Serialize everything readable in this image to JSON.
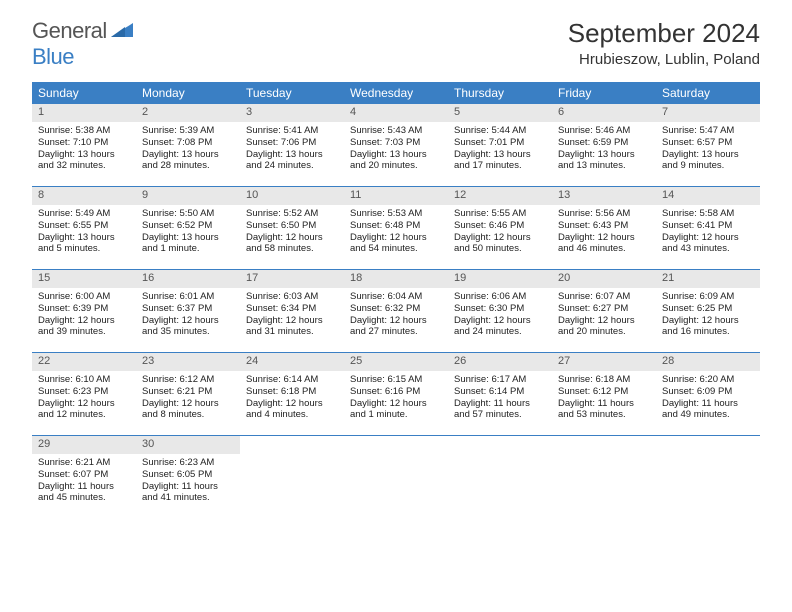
{
  "logo": {
    "text1": "General",
    "text2": "Blue"
  },
  "title": "September 2024",
  "location": "Hrubieszow, Lublin, Poland",
  "colors": {
    "accent": "#3a7fc4",
    "daynum_bg": "#e8e8e8",
    "text": "#222222",
    "logo_gray": "#555555"
  },
  "dow": [
    "Sunday",
    "Monday",
    "Tuesday",
    "Wednesday",
    "Thursday",
    "Friday",
    "Saturday"
  ],
  "days": [
    {
      "n": "1",
      "sr": "Sunrise: 5:38 AM",
      "ss": "Sunset: 7:10 PM",
      "dl": "Daylight: 13 hours and 32 minutes."
    },
    {
      "n": "2",
      "sr": "Sunrise: 5:39 AM",
      "ss": "Sunset: 7:08 PM",
      "dl": "Daylight: 13 hours and 28 minutes."
    },
    {
      "n": "3",
      "sr": "Sunrise: 5:41 AM",
      "ss": "Sunset: 7:06 PM",
      "dl": "Daylight: 13 hours and 24 minutes."
    },
    {
      "n": "4",
      "sr": "Sunrise: 5:43 AM",
      "ss": "Sunset: 7:03 PM",
      "dl": "Daylight: 13 hours and 20 minutes."
    },
    {
      "n": "5",
      "sr": "Sunrise: 5:44 AM",
      "ss": "Sunset: 7:01 PM",
      "dl": "Daylight: 13 hours and 17 minutes."
    },
    {
      "n": "6",
      "sr": "Sunrise: 5:46 AM",
      "ss": "Sunset: 6:59 PM",
      "dl": "Daylight: 13 hours and 13 minutes."
    },
    {
      "n": "7",
      "sr": "Sunrise: 5:47 AM",
      "ss": "Sunset: 6:57 PM",
      "dl": "Daylight: 13 hours and 9 minutes."
    },
    {
      "n": "8",
      "sr": "Sunrise: 5:49 AM",
      "ss": "Sunset: 6:55 PM",
      "dl": "Daylight: 13 hours and 5 minutes."
    },
    {
      "n": "9",
      "sr": "Sunrise: 5:50 AM",
      "ss": "Sunset: 6:52 PM",
      "dl": "Daylight: 13 hours and 1 minute."
    },
    {
      "n": "10",
      "sr": "Sunrise: 5:52 AM",
      "ss": "Sunset: 6:50 PM",
      "dl": "Daylight: 12 hours and 58 minutes."
    },
    {
      "n": "11",
      "sr": "Sunrise: 5:53 AM",
      "ss": "Sunset: 6:48 PM",
      "dl": "Daylight: 12 hours and 54 minutes."
    },
    {
      "n": "12",
      "sr": "Sunrise: 5:55 AM",
      "ss": "Sunset: 6:46 PM",
      "dl": "Daylight: 12 hours and 50 minutes."
    },
    {
      "n": "13",
      "sr": "Sunrise: 5:56 AM",
      "ss": "Sunset: 6:43 PM",
      "dl": "Daylight: 12 hours and 46 minutes."
    },
    {
      "n": "14",
      "sr": "Sunrise: 5:58 AM",
      "ss": "Sunset: 6:41 PM",
      "dl": "Daylight: 12 hours and 43 minutes."
    },
    {
      "n": "15",
      "sr": "Sunrise: 6:00 AM",
      "ss": "Sunset: 6:39 PM",
      "dl": "Daylight: 12 hours and 39 minutes."
    },
    {
      "n": "16",
      "sr": "Sunrise: 6:01 AM",
      "ss": "Sunset: 6:37 PM",
      "dl": "Daylight: 12 hours and 35 minutes."
    },
    {
      "n": "17",
      "sr": "Sunrise: 6:03 AM",
      "ss": "Sunset: 6:34 PM",
      "dl": "Daylight: 12 hours and 31 minutes."
    },
    {
      "n": "18",
      "sr": "Sunrise: 6:04 AM",
      "ss": "Sunset: 6:32 PM",
      "dl": "Daylight: 12 hours and 27 minutes."
    },
    {
      "n": "19",
      "sr": "Sunrise: 6:06 AM",
      "ss": "Sunset: 6:30 PM",
      "dl": "Daylight: 12 hours and 24 minutes."
    },
    {
      "n": "20",
      "sr": "Sunrise: 6:07 AM",
      "ss": "Sunset: 6:27 PM",
      "dl": "Daylight: 12 hours and 20 minutes."
    },
    {
      "n": "21",
      "sr": "Sunrise: 6:09 AM",
      "ss": "Sunset: 6:25 PM",
      "dl": "Daylight: 12 hours and 16 minutes."
    },
    {
      "n": "22",
      "sr": "Sunrise: 6:10 AM",
      "ss": "Sunset: 6:23 PM",
      "dl": "Daylight: 12 hours and 12 minutes."
    },
    {
      "n": "23",
      "sr": "Sunrise: 6:12 AM",
      "ss": "Sunset: 6:21 PM",
      "dl": "Daylight: 12 hours and 8 minutes."
    },
    {
      "n": "24",
      "sr": "Sunrise: 6:14 AM",
      "ss": "Sunset: 6:18 PM",
      "dl": "Daylight: 12 hours and 4 minutes."
    },
    {
      "n": "25",
      "sr": "Sunrise: 6:15 AM",
      "ss": "Sunset: 6:16 PM",
      "dl": "Daylight: 12 hours and 1 minute."
    },
    {
      "n": "26",
      "sr": "Sunrise: 6:17 AM",
      "ss": "Sunset: 6:14 PM",
      "dl": "Daylight: 11 hours and 57 minutes."
    },
    {
      "n": "27",
      "sr": "Sunrise: 6:18 AM",
      "ss": "Sunset: 6:12 PM",
      "dl": "Daylight: 11 hours and 53 minutes."
    },
    {
      "n": "28",
      "sr": "Sunrise: 6:20 AM",
      "ss": "Sunset: 6:09 PM",
      "dl": "Daylight: 11 hours and 49 minutes."
    },
    {
      "n": "29",
      "sr": "Sunrise: 6:21 AM",
      "ss": "Sunset: 6:07 PM",
      "dl": "Daylight: 11 hours and 45 minutes."
    },
    {
      "n": "30",
      "sr": "Sunrise: 6:23 AM",
      "ss": "Sunset: 6:05 PM",
      "dl": "Daylight: 11 hours and 41 minutes."
    }
  ],
  "layout": {
    "start_offset": 0,
    "cols": 7,
    "rows": 5
  }
}
